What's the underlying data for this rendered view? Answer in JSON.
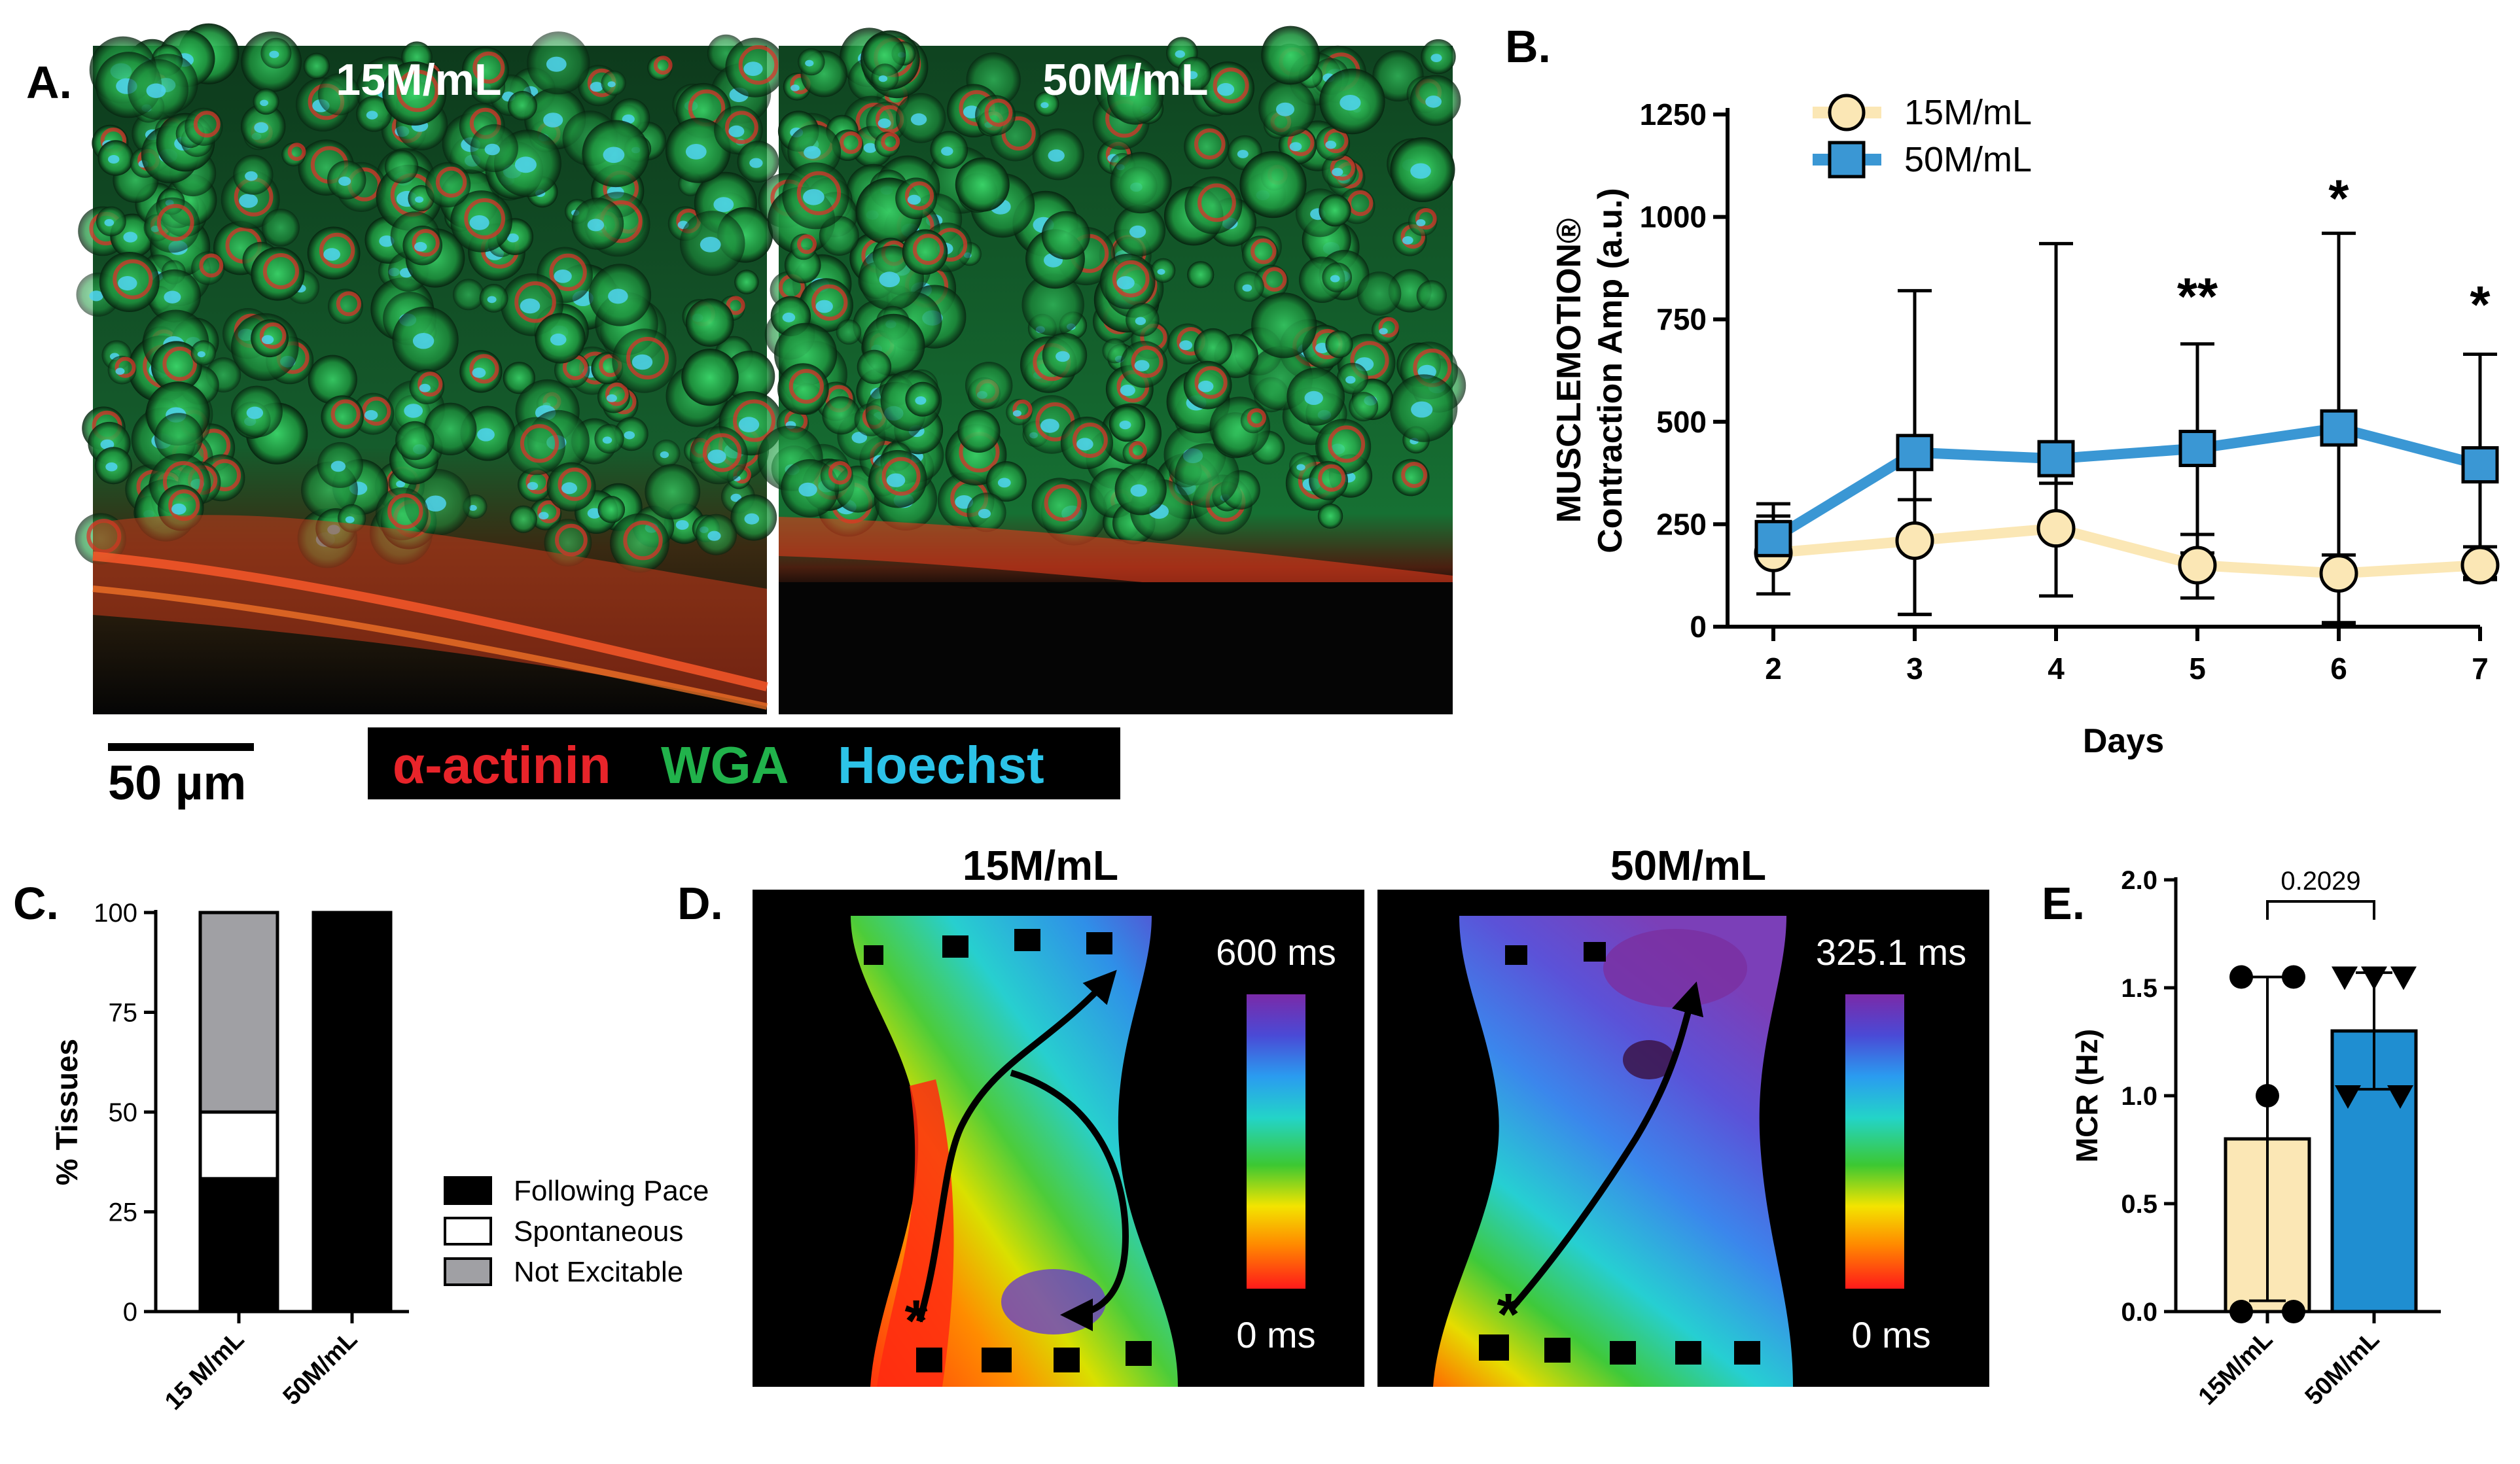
{
  "colors": {
    "series15": "#fbe7b5",
    "series50": "#3a97d4",
    "bar50E": "#1f8ed1",
    "actinin": "#e8242a",
    "wga": "#21b24b",
    "hoechst": "#2cc3e8"
  },
  "panelA": {
    "label": "A.",
    "images": [
      {
        "title": "15M/mL"
      },
      {
        "title": "50M/mL"
      }
    ],
    "scalebar": "50 µm",
    "stain_legend": [
      "α-actinin",
      "WGA",
      "Hoechst"
    ]
  },
  "panelB": {
    "label": "B."
  },
  "panelC": {
    "label": "C."
  },
  "panelD": {
    "label": "D.",
    "maps": [
      {
        "title": "15M/mL",
        "max_time": "600 ms",
        "min_time": "0 ms"
      },
      {
        "title": "50M/mL",
        "max_time": "325.1 ms",
        "min_time": "0 ms"
      }
    ],
    "origin_marker": "*"
  },
  "panelE": {
    "label": "E."
  },
  "chart_data": [
    {
      "id": "B",
      "type": "line",
      "xlabel": "Days",
      "ylabel_line1": "MUSCLEMOTION®",
      "ylabel_line2": "Contraction Amp (a.u.)",
      "x": [
        2,
        3,
        4,
        5,
        6,
        7
      ],
      "x_ticks": [
        "2",
        "3",
        "4",
        "5",
        "6",
        "7"
      ],
      "ylim": [
        0,
        1250
      ],
      "y_ticks": [
        "0",
        "250",
        "500",
        "750",
        "1000",
        "1250"
      ],
      "y_tick_values": [
        0,
        250,
        500,
        750,
        1000,
        1250
      ],
      "series": [
        {
          "name": "15M/mL",
          "values": [
            180,
            210,
            240,
            150,
            130,
            150
          ],
          "upper": [
            300,
            310,
            350,
            225,
            175,
            195
          ],
          "lower": [
            80,
            30,
            75,
            70,
            10,
            115
          ]
        },
        {
          "name": "50M/mL",
          "values": [
            215,
            425,
            410,
            435,
            485,
            395
          ],
          "upper": [
            270,
            820,
            935,
            690,
            960,
            665
          ],
          "lower": [
            160,
            30,
            75,
            180,
            5,
            120
          ]
        }
      ],
      "annotations": [
        {
          "x": 5,
          "text": "**",
          "y": 810
        },
        {
          "x": 6,
          "text": "*",
          "y": 1050
        },
        {
          "x": 7,
          "text": "*",
          "y": 790
        }
      ]
    },
    {
      "id": "C",
      "type": "bar",
      "stacked": true,
      "ylabel": "% Tissues",
      "categories": [
        "15 M/mL",
        "50M/mL"
      ],
      "ylim": [
        0,
        100
      ],
      "y_ticks": [
        "0",
        "25",
        "50",
        "75",
        "100"
      ],
      "y_tick_values": [
        0,
        25,
        50,
        75,
        100
      ],
      "series": [
        {
          "name": "Following Pace",
          "values": [
            33.3,
            100
          ],
          "color": "#000000"
        },
        {
          "name": "Spontaneous",
          "values": [
            16.7,
            0
          ],
          "color": "#ffffff"
        },
        {
          "name": "Not Excitable",
          "values": [
            50,
            0
          ],
          "color": "#a0a0a4"
        }
      ]
    },
    {
      "id": "E",
      "type": "bar",
      "ylabel": "MCR (Hz)",
      "categories": [
        "15M/mL",
        "50M/mL"
      ],
      "values": [
        0.8,
        1.3
      ],
      "sd": [
        0.75,
        0.27
      ],
      "ylim": [
        0,
        2.0
      ],
      "y_ticks": [
        "0.0",
        "0.5",
        "1.0",
        "1.5",
        "2.0"
      ],
      "y_tick_values": [
        0,
        0.5,
        1.0,
        1.5,
        2.0
      ],
      "points": [
        [
          1.55,
          1.55,
          1.0,
          0.0,
          0.0
        ],
        [
          1.55,
          1.55,
          1.55,
          1.0,
          1.0
        ]
      ],
      "p_value": "0.2029"
    }
  ]
}
